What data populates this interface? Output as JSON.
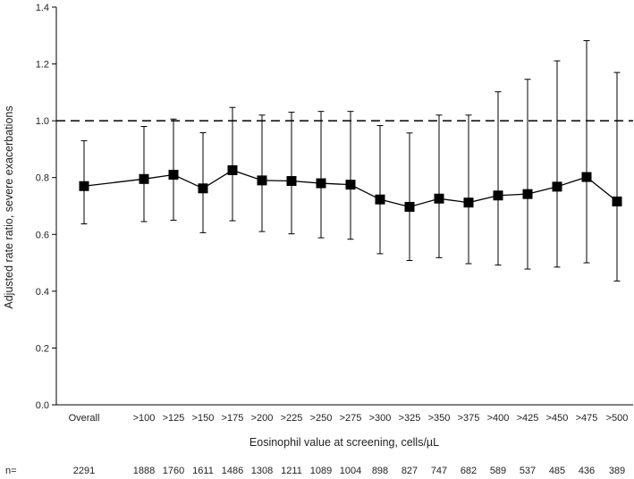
{
  "chart_data": {
    "type": "scatter",
    "subtype": "point-estimate-with-error-bars",
    "title": "",
    "xlabel": "Eosinophil value at screening, cells/µL",
    "ylabel": "Adjusted rate ratio, severe exacerbations",
    "ylim": [
      0,
      1.4
    ],
    "yticks": [
      "0.0",
      "0.2",
      "0.4",
      "0.6",
      "0.8",
      "1.0",
      "1.2",
      "1.4"
    ],
    "reference_line": {
      "y": 1.0,
      "style": "dashed"
    },
    "categories": [
      "Overall",
      ">100",
      ">125",
      ">150",
      ">175",
      ">200",
      ">225",
      ">250",
      ">275",
      ">300",
      ">325",
      ">350",
      ">375",
      ">400",
      ">425",
      ">450",
      ">475",
      ">500"
    ],
    "gap_after_first": true,
    "series": [
      {
        "name": "Adjusted rate ratio",
        "values": [
          0.77,
          0.795,
          0.81,
          0.762,
          0.826,
          0.79,
          0.788,
          0.78,
          0.775,
          0.723,
          0.697,
          0.726,
          0.712,
          0.737,
          0.742,
          0.768,
          0.802,
          0.716
        ],
        "lower": [
          0.637,
          0.645,
          0.65,
          0.606,
          0.648,
          0.61,
          0.602,
          0.588,
          0.583,
          0.532,
          0.508,
          0.518,
          0.497,
          0.492,
          0.478,
          0.485,
          0.5,
          0.436
        ],
        "upper": [
          0.93,
          0.98,
          1.006,
          0.958,
          1.047,
          1.02,
          1.03,
          1.033,
          1.033,
          0.983,
          0.957,
          1.02,
          1.02,
          1.102,
          1.146,
          1.211,
          1.282,
          1.17
        ]
      }
    ],
    "n_label": "n=",
    "n_values": [
      "2291",
      "1888",
      "1760",
      "1611",
      "1486",
      "1308",
      "1211",
      "1089",
      "1004",
      "898",
      "827",
      "747",
      "682",
      "589",
      "537",
      "485",
      "436",
      "389"
    ]
  }
}
